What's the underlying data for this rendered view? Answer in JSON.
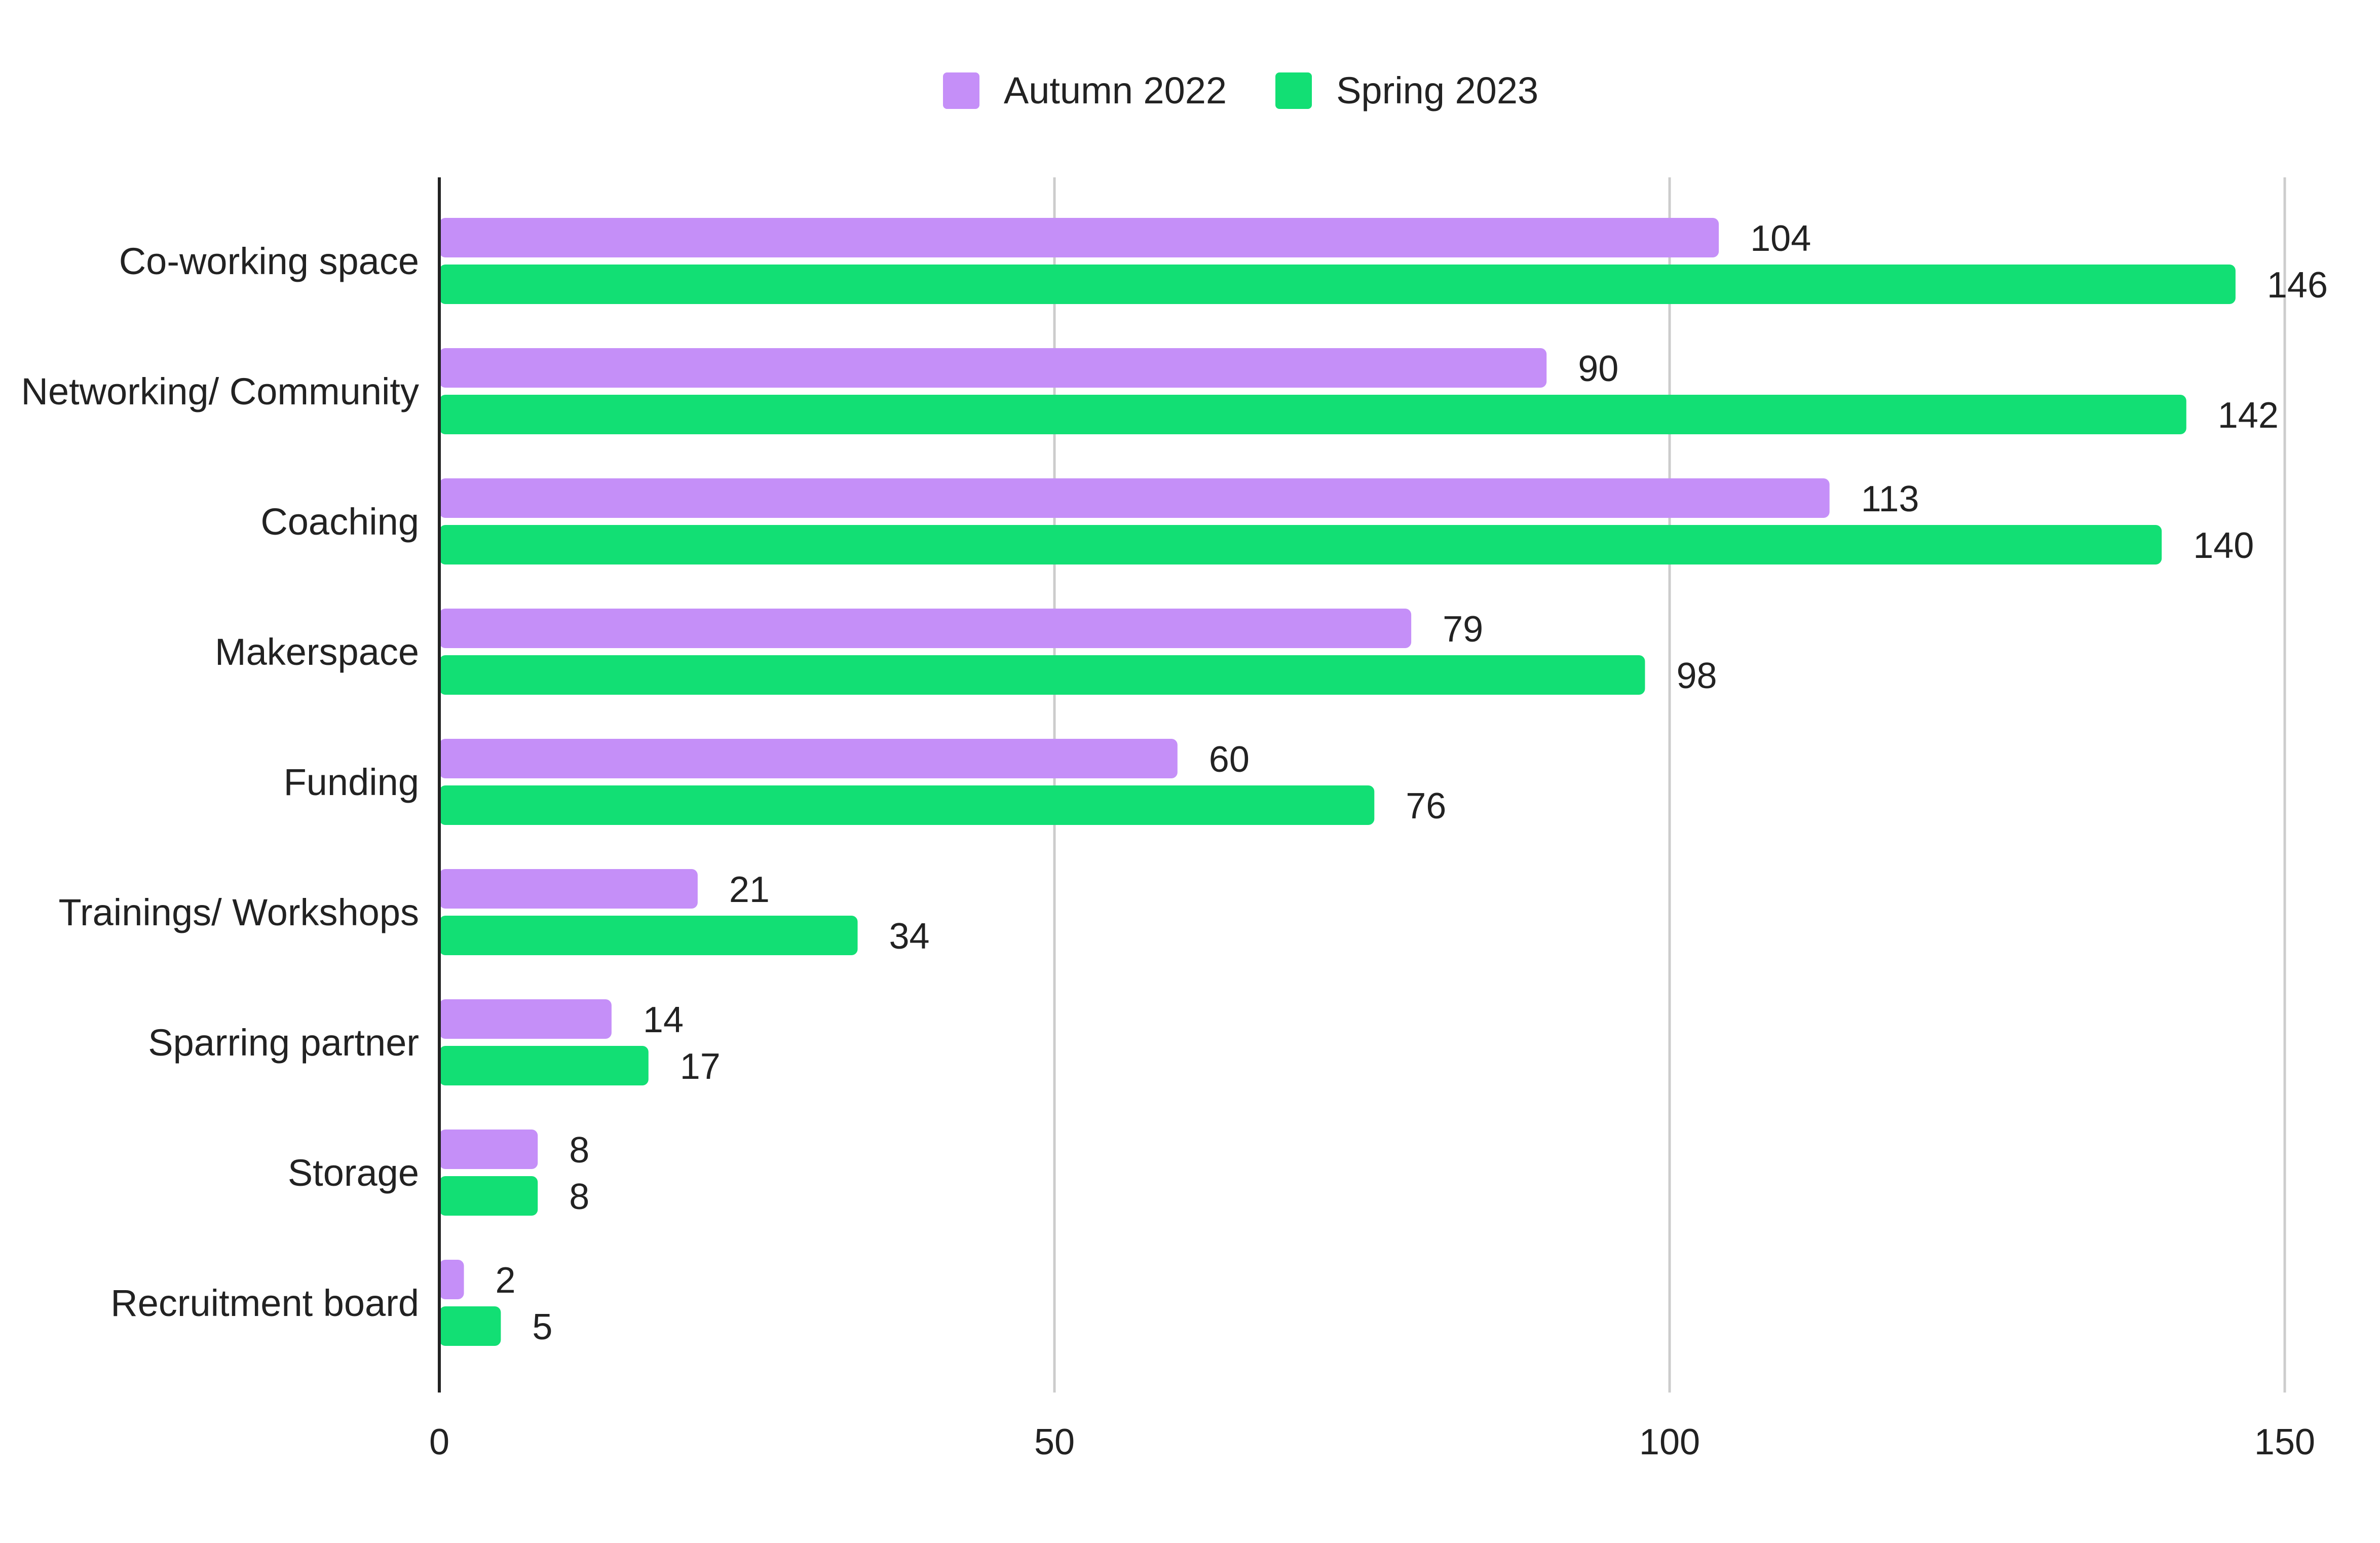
{
  "chart_data": {
    "type": "bar",
    "orientation": "horizontal",
    "categories": [
      "Co-working space",
      "Networking/ Community",
      "Coaching",
      "Makerspace",
      "Funding",
      "Trainings/ Workshops",
      "Sparring partner",
      "Storage",
      "Recruitment board"
    ],
    "series": [
      {
        "name": "Autumn 2022",
        "color": "#c58ff8",
        "values": [
          104,
          90,
          113,
          79,
          60,
          21,
          14,
          8,
          2
        ]
      },
      {
        "name": "Spring 2023",
        "color": "#12df74",
        "values": [
          146,
          142,
          140,
          98,
          76,
          34,
          17,
          8,
          5
        ]
      }
    ],
    "xlim": [
      0,
      150
    ],
    "xticks": [
      "0",
      "50",
      "100",
      "150"
    ],
    "grid": true,
    "legend": "top-center",
    "data_labels": true,
    "title": "",
    "xlabel": "",
    "ylabel": ""
  }
}
